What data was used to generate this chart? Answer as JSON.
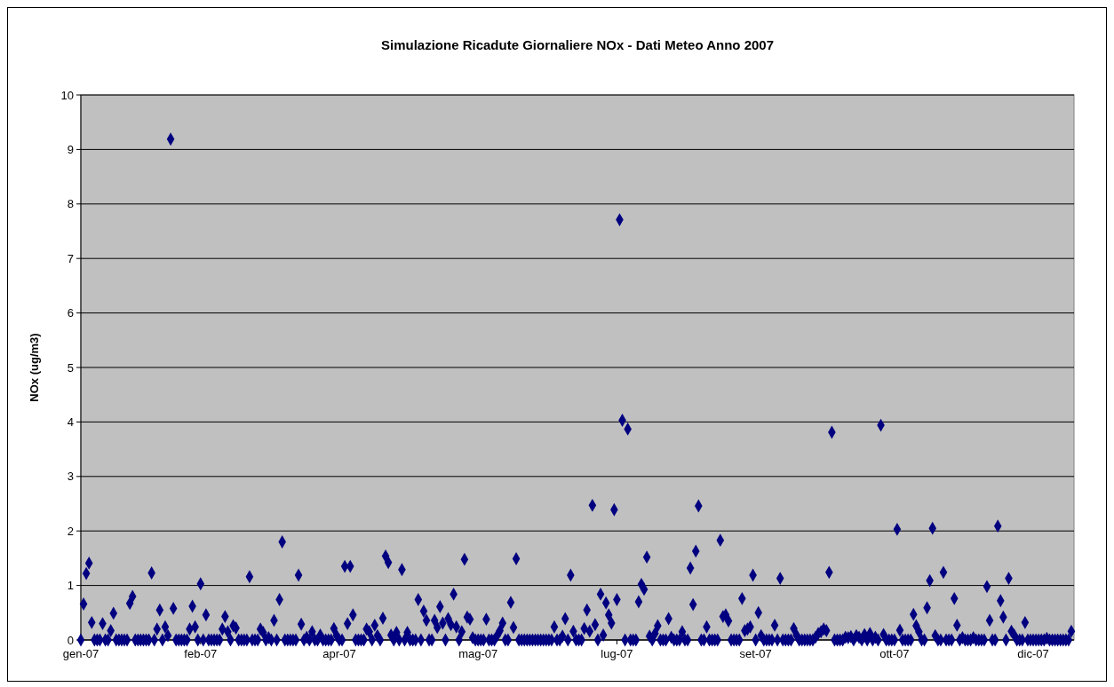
{
  "chart_data": {
    "type": "scatter",
    "title": "Simulazione Ricadute Giornaliere NOx - Dati Meteo Anno 2007",
    "ylabel": "NOx (ug/m3)",
    "xlim": [
      "2007-01-01",
      "2008-01-01"
    ],
    "xticks": [
      {
        "value": "2007-01-01",
        "label": "gen-07"
      },
      {
        "value": "2007-02-14",
        "label": "feb-07"
      },
      {
        "value": "2007-04-06",
        "label": "apr-07"
      },
      {
        "value": "2007-05-27",
        "label": "mag-07"
      },
      {
        "value": "2007-07-17",
        "label": "lug-07"
      },
      {
        "value": "2007-09-06",
        "label": "set-07"
      },
      {
        "value": "2007-10-27",
        "label": "ott-07"
      },
      {
        "value": "2007-12-17",
        "label": "dic-07"
      }
    ],
    "ylim": [
      0,
      10
    ],
    "yticks": [
      0,
      1,
      2,
      3,
      4,
      5,
      6,
      7,
      8,
      9,
      10
    ],
    "grid": "y",
    "marker": "diamond",
    "series": [
      {
        "color": "#000080",
        "x": [
          "2007-01-01",
          "2007-01-02",
          "2007-01-03",
          "2007-01-04",
          "2007-01-05",
          "2007-01-06",
          "2007-01-07",
          "2007-01-08",
          "2007-01-09",
          "2007-01-10",
          "2007-01-11",
          "2007-01-12",
          "2007-01-13",
          "2007-01-14",
          "2007-01-15",
          "2007-01-16",
          "2007-01-17",
          "2007-01-18",
          "2007-01-19",
          "2007-01-20",
          "2007-01-21",
          "2007-01-22",
          "2007-01-23",
          "2007-01-24",
          "2007-01-25",
          "2007-01-26",
          "2007-01-27",
          "2007-01-28",
          "2007-01-29",
          "2007-01-30",
          "2007-01-31",
          "2007-02-01",
          "2007-02-02",
          "2007-02-03",
          "2007-02-04",
          "2007-02-05",
          "2007-02-06",
          "2007-02-07",
          "2007-02-08",
          "2007-02-09",
          "2007-02-10",
          "2007-02-11",
          "2007-02-12",
          "2007-02-13",
          "2007-02-14",
          "2007-02-15",
          "2007-02-16",
          "2007-02-17",
          "2007-02-18",
          "2007-02-19",
          "2007-02-20",
          "2007-02-21",
          "2007-02-22",
          "2007-02-23",
          "2007-02-24",
          "2007-02-25",
          "2007-02-26",
          "2007-02-27",
          "2007-02-28",
          "2007-03-01",
          "2007-03-02",
          "2007-03-03",
          "2007-03-04",
          "2007-03-05",
          "2007-03-06",
          "2007-03-07",
          "2007-03-08",
          "2007-03-09",
          "2007-03-10",
          "2007-03-11",
          "2007-03-12",
          "2007-03-13",
          "2007-03-14",
          "2007-03-15",
          "2007-03-16",
          "2007-03-17",
          "2007-03-18",
          "2007-03-19",
          "2007-03-20",
          "2007-03-21",
          "2007-03-22",
          "2007-03-23",
          "2007-03-24",
          "2007-03-25",
          "2007-03-26",
          "2007-03-27",
          "2007-03-28",
          "2007-03-29",
          "2007-03-30",
          "2007-03-31",
          "2007-04-01",
          "2007-04-02",
          "2007-04-03",
          "2007-04-04",
          "2007-04-05",
          "2007-04-06",
          "2007-04-07",
          "2007-04-08",
          "2007-04-09",
          "2007-04-10",
          "2007-04-11",
          "2007-04-12",
          "2007-04-13",
          "2007-04-14",
          "2007-04-15",
          "2007-04-16",
          "2007-04-17",
          "2007-04-18",
          "2007-04-19",
          "2007-04-20",
          "2007-04-21",
          "2007-04-22",
          "2007-04-23",
          "2007-04-24",
          "2007-04-25",
          "2007-04-26",
          "2007-04-27",
          "2007-04-28",
          "2007-04-29",
          "2007-04-30",
          "2007-05-01",
          "2007-05-02",
          "2007-05-03",
          "2007-05-04",
          "2007-05-05",
          "2007-05-06",
          "2007-05-07",
          "2007-05-08",
          "2007-05-09",
          "2007-05-10",
          "2007-05-11",
          "2007-05-12",
          "2007-05-13",
          "2007-05-14",
          "2007-05-15",
          "2007-05-16",
          "2007-05-17",
          "2007-05-18",
          "2007-05-19",
          "2007-05-20",
          "2007-05-21",
          "2007-05-22",
          "2007-05-23",
          "2007-05-24",
          "2007-05-25",
          "2007-05-26",
          "2007-05-27",
          "2007-05-28",
          "2007-05-29",
          "2007-05-30",
          "2007-05-31",
          "2007-06-01",
          "2007-06-02",
          "2007-06-03",
          "2007-06-04",
          "2007-06-05",
          "2007-06-06",
          "2007-06-07",
          "2007-06-08",
          "2007-06-09",
          "2007-06-10",
          "2007-06-11",
          "2007-06-12",
          "2007-06-13",
          "2007-06-14",
          "2007-06-15",
          "2007-06-16",
          "2007-06-17",
          "2007-06-18",
          "2007-06-19",
          "2007-06-20",
          "2007-06-21",
          "2007-06-22",
          "2007-06-23",
          "2007-06-24",
          "2007-06-25",
          "2007-06-26",
          "2007-06-27",
          "2007-06-28",
          "2007-06-29",
          "2007-06-30",
          "2007-07-01",
          "2007-07-02",
          "2007-07-03",
          "2007-07-04",
          "2007-07-05",
          "2007-07-06",
          "2007-07-07",
          "2007-07-08",
          "2007-07-09",
          "2007-07-10",
          "2007-07-11",
          "2007-07-12",
          "2007-07-13",
          "2007-07-14",
          "2007-07-15",
          "2007-07-16",
          "2007-07-17",
          "2007-07-18",
          "2007-07-19",
          "2007-07-20",
          "2007-07-21",
          "2007-07-22",
          "2007-07-23",
          "2007-07-24",
          "2007-07-25",
          "2007-07-26",
          "2007-07-27",
          "2007-07-28",
          "2007-07-29",
          "2007-07-30",
          "2007-07-31",
          "2007-08-01",
          "2007-08-02",
          "2007-08-03",
          "2007-08-04",
          "2007-08-05",
          "2007-08-06",
          "2007-08-07",
          "2007-08-08",
          "2007-08-09",
          "2007-08-10",
          "2007-08-11",
          "2007-08-12",
          "2007-08-13",
          "2007-08-14",
          "2007-08-15",
          "2007-08-16",
          "2007-08-17",
          "2007-08-18",
          "2007-08-19",
          "2007-08-20",
          "2007-08-21",
          "2007-08-22",
          "2007-08-23",
          "2007-08-24",
          "2007-08-25",
          "2007-08-26",
          "2007-08-27",
          "2007-08-28",
          "2007-08-29",
          "2007-08-30",
          "2007-08-31",
          "2007-09-01",
          "2007-09-02",
          "2007-09-03",
          "2007-09-04",
          "2007-09-05",
          "2007-09-06",
          "2007-09-07",
          "2007-09-08",
          "2007-09-09",
          "2007-09-10",
          "2007-09-11",
          "2007-09-12",
          "2007-09-13",
          "2007-09-14",
          "2007-09-15",
          "2007-09-16",
          "2007-09-17",
          "2007-09-18",
          "2007-09-19",
          "2007-09-20",
          "2007-09-21",
          "2007-09-22",
          "2007-09-23",
          "2007-09-24",
          "2007-09-25",
          "2007-09-26",
          "2007-09-27",
          "2007-09-28",
          "2007-09-29",
          "2007-09-30",
          "2007-10-01",
          "2007-10-02",
          "2007-10-03",
          "2007-10-04",
          "2007-10-05",
          "2007-10-06",
          "2007-10-07",
          "2007-10-08",
          "2007-10-09",
          "2007-10-10",
          "2007-10-11",
          "2007-10-12",
          "2007-10-13",
          "2007-10-14",
          "2007-10-15",
          "2007-10-16",
          "2007-10-17",
          "2007-10-18",
          "2007-10-19",
          "2007-10-20",
          "2007-10-21",
          "2007-10-22",
          "2007-10-23",
          "2007-10-24",
          "2007-10-25",
          "2007-10-26",
          "2007-10-27",
          "2007-10-28",
          "2007-10-29",
          "2007-10-30",
          "2007-10-31",
          "2007-11-01",
          "2007-11-02",
          "2007-11-03",
          "2007-11-04",
          "2007-11-05",
          "2007-11-06",
          "2007-11-07",
          "2007-11-08",
          "2007-11-09",
          "2007-11-10",
          "2007-11-11",
          "2007-11-12",
          "2007-11-13",
          "2007-11-14",
          "2007-11-15",
          "2007-11-16",
          "2007-11-17",
          "2007-11-18",
          "2007-11-19",
          "2007-11-20",
          "2007-11-21",
          "2007-11-22",
          "2007-11-23",
          "2007-11-24",
          "2007-11-25",
          "2007-11-26",
          "2007-11-27",
          "2007-11-28",
          "2007-11-29",
          "2007-11-30",
          "2007-12-01",
          "2007-12-02",
          "2007-12-03",
          "2007-12-04",
          "2007-12-05",
          "2007-12-06",
          "2007-12-07",
          "2007-12-08",
          "2007-12-09",
          "2007-12-10",
          "2007-12-11",
          "2007-12-12",
          "2007-12-13",
          "2007-12-14",
          "2007-12-15",
          "2007-12-16",
          "2007-12-17",
          "2007-12-18",
          "2007-12-19",
          "2007-12-20",
          "2007-12-21",
          "2007-12-22",
          "2007-12-23",
          "2007-12-24",
          "2007-12-25",
          "2007-12-26",
          "2007-12-27",
          "2007-12-28",
          "2007-12-29",
          "2007-12-30",
          "2007-12-31"
        ],
        "values": [
          0,
          0.66,
          1.22,
          1.41,
          0.32,
          0,
          0,
          0,
          0.3,
          0,
          0,
          0.17,
          0.49,
          0,
          0,
          0,
          0,
          0,
          0.67,
          0.8,
          0,
          0,
          0,
          0,
          0,
          0,
          1.23,
          0,
          0.2,
          0.55,
          0,
          0.24,
          0.08,
          9.19,
          0.58,
          0,
          0,
          0,
          0,
          0,
          0.2,
          0.62,
          0.24,
          0,
          1.03,
          0,
          0.46,
          0,
          0,
          0,
          0,
          0,
          0.2,
          0.43,
          0.15,
          0,
          0.26,
          0.22,
          0,
          0,
          0,
          0,
          1.16,
          0,
          0,
          0,
          0.2,
          0.14,
          0,
          0.04,
          0,
          0.36,
          0,
          0.74,
          1.8,
          0,
          0,
          0,
          0,
          0,
          1.19,
          0.29,
          0,
          0.05,
          0,
          0.15,
          0,
          0,
          0.09,
          0,
          0,
          0,
          0,
          0.21,
          0.08,
          0,
          0,
          1.35,
          0.3,
          1.35,
          0.46,
          0,
          0,
          0,
          0,
          0.2,
          0.15,
          0,
          0.27,
          0.08,
          0,
          0.4,
          1.54,
          1.42,
          0.09,
          0,
          0.14,
          0,
          1.29,
          0,
          0.14,
          0,
          0,
          0,
          0.74,
          0,
          0.53,
          0.36,
          0,
          0,
          0.36,
          0.23,
          0.61,
          0.31,
          0,
          0.39,
          0.28,
          0.84,
          0.24,
          0,
          0.15,
          1.48,
          0.42,
          0.38,
          0.04,
          0,
          0,
          0,
          0,
          0.38,
          0,
          0,
          0,
          0.08,
          0.17,
          0.31,
          0,
          0,
          0.69,
          0.23,
          1.49,
          0,
          0,
          0,
          0,
          0,
          0,
          0,
          0,
          0,
          0,
          0,
          0,
          0,
          0.24,
          0,
          0,
          0.07,
          0.39,
          0,
          1.19,
          0.16,
          0,
          0,
          0,
          0.21,
          0.55,
          0.16,
          2.47,
          0.28,
          0,
          0.84,
          0.09,
          0.68,
          0.46,
          0.31,
          2.39,
          0.74,
          7.71,
          4.03,
          0,
          3.87,
          0,
          0,
          0,
          0.7,
          1.02,
          0.93,
          1.52,
          0.07,
          0,
          0.12,
          0.26,
          0,
          0,
          0,
          0.39,
          0.05,
          0,
          0,
          0,
          0.15,
          0,
          0,
          1.32,
          0.65,
          1.63,
          2.46,
          0,
          0,
          0.24,
          0,
          0,
          0,
          0,
          1.83,
          0.43,
          0.46,
          0.35,
          0,
          0,
          0,
          0,
          0.76,
          0.17,
          0.2,
          0.24,
          1.19,
          0,
          0.5,
          0.08,
          0,
          0,
          0,
          0,
          0.27,
          0,
          1.13,
          0,
          0,
          0,
          0,
          0.21,
          0.09,
          0,
          0,
          0,
          0,
          0,
          0,
          0.05,
          0.12,
          0.15,
          0.2,
          0.17,
          1.24,
          3.81,
          0,
          0,
          0,
          0,
          0.05,
          0.04,
          0.06,
          0,
          0.08,
          0.05,
          0,
          0.1,
          0,
          0.12,
          0,
          0.05,
          0,
          3.94,
          0.1,
          0,
          0,
          0,
          0,
          2.03,
          0.18,
          0,
          0,
          0,
          0,
          0.47,
          0.26,
          0.15,
          0,
          0,
          0.59,
          1.09,
          2.05,
          0.08,
          0,
          0,
          1.24,
          0,
          0,
          0,
          0.76,
          0.27,
          0,
          0.04,
          0,
          0,
          0,
          0.04,
          0,
          0,
          0,
          0,
          0.98,
          0.36,
          0,
          0,
          2.09,
          0.72,
          0.42,
          0,
          1.13,
          0.16,
          0.09,
          0,
          0,
          0,
          0.32,
          0,
          0,
          0,
          0,
          0,
          0,
          0,
          0.03,
          0,
          0,
          0,
          0,
          0,
          0,
          0,
          0,
          0.16
        ]
      }
    ]
  }
}
